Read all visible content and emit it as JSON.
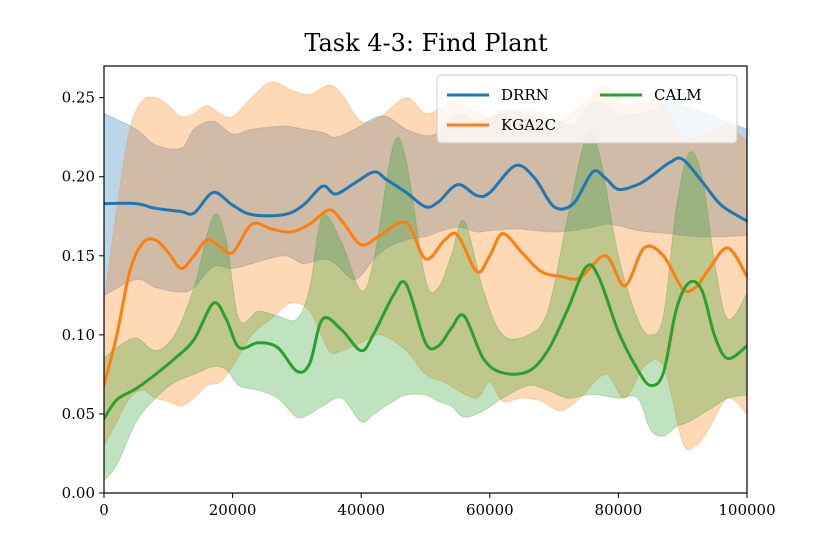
{
  "chart_data": {
    "type": "line",
    "title": "Task 4-3: Find Plant",
    "xlabel": "",
    "ylabel": "",
    "xlim": [
      0,
      100000
    ],
    "ylim": [
      0.0,
      0.27
    ],
    "x_ticks": [
      0,
      20000,
      40000,
      60000,
      80000,
      100000
    ],
    "x_tick_labels": [
      "0",
      "20000",
      "40000",
      "60000",
      "80000",
      "100000"
    ],
    "y_ticks": [
      0.0,
      0.05,
      0.1,
      0.15,
      0.2,
      0.25
    ],
    "y_tick_labels": [
      "0.00",
      "0.05",
      "0.10",
      "0.15",
      "0.20",
      "0.25"
    ],
    "grid": false,
    "legend_position": "top-right",
    "series": [
      {
        "name": "DRRN",
        "color": "#1f77b4",
        "x": [
          0,
          5000,
          8000,
          12000,
          14000,
          17000,
          20000,
          23000,
          28000,
          31000,
          34000,
          36000,
          39000,
          42000,
          44000,
          47000,
          50000,
          52000,
          55000,
          58000,
          60000,
          64000,
          67000,
          70000,
          73000,
          76000,
          78000,
          80000,
          83000,
          85000,
          88000,
          90000,
          93000,
          96000,
          100000
        ],
        "values": [
          0.183,
          0.183,
          0.18,
          0.178,
          0.177,
          0.19,
          0.182,
          0.176,
          0.176,
          0.182,
          0.194,
          0.189,
          0.196,
          0.203,
          0.198,
          0.19,
          0.181,
          0.184,
          0.195,
          0.188,
          0.19,
          0.207,
          0.199,
          0.181,
          0.183,
          0.203,
          0.199,
          0.192,
          0.195,
          0.2,
          0.209,
          0.211,
          0.197,
          0.182,
          0.172
        ],
        "band_low": [
          0.125,
          0.135,
          0.13,
          0.127,
          0.13,
          0.143,
          0.142,
          0.145,
          0.15,
          0.145,
          0.148,
          0.145,
          0.135,
          0.148,
          0.155,
          0.16,
          0.162,
          0.165,
          0.168,
          0.165,
          0.166,
          0.167,
          0.166,
          0.165,
          0.166,
          0.168,
          0.17,
          0.169,
          0.166,
          0.165,
          0.164,
          0.163,
          0.162,
          0.162,
          0.163
        ],
        "band_high": [
          0.24,
          0.23,
          0.22,
          0.218,
          0.23,
          0.235,
          0.227,
          0.23,
          0.232,
          0.23,
          0.228,
          0.225,
          0.23,
          0.237,
          0.238,
          0.23,
          0.226,
          0.228,
          0.24,
          0.235,
          0.238,
          0.241,
          0.235,
          0.236,
          0.233,
          0.247,
          0.245,
          0.24,
          0.24,
          0.242,
          0.247,
          0.245,
          0.241,
          0.236,
          0.23
        ]
      },
      {
        "name": "KGA2C",
        "color": "#ff7f0e",
        "x": [
          0,
          2000,
          4000,
          6000,
          8000,
          10000,
          12000,
          14000,
          16000,
          18000,
          20000,
          23000,
          26000,
          29000,
          32000,
          35000,
          37000,
          40000,
          43000,
          47000,
          50000,
          53000,
          55000,
          58000,
          60000,
          62000,
          65000,
          68000,
          71000,
          74000,
          78000,
          81000,
          84000,
          87000,
          90000,
          92000,
          94000,
          97000,
          100000
        ],
        "values": [
          0.068,
          0.1,
          0.14,
          0.158,
          0.16,
          0.152,
          0.142,
          0.15,
          0.16,
          0.156,
          0.152,
          0.17,
          0.167,
          0.165,
          0.17,
          0.179,
          0.172,
          0.157,
          0.163,
          0.171,
          0.148,
          0.16,
          0.163,
          0.14,
          0.15,
          0.164,
          0.152,
          0.14,
          0.137,
          0.136,
          0.15,
          0.131,
          0.155,
          0.15,
          0.129,
          0.13,
          0.141,
          0.155,
          0.137
        ],
        "band_low": [
          0.03,
          0.045,
          0.06,
          0.065,
          0.06,
          0.058,
          0.055,
          0.06,
          0.068,
          0.07,
          0.08,
          0.1,
          0.11,
          0.12,
          0.115,
          0.09,
          0.09,
          0.095,
          0.1,
          0.09,
          0.075,
          0.07,
          0.065,
          0.06,
          0.07,
          0.058,
          0.06,
          0.058,
          0.052,
          0.06,
          0.075,
          0.06,
          0.08,
          0.08,
          0.032,
          0.03,
          0.04,
          0.06,
          0.05
        ],
        "band_high": [
          0.12,
          0.18,
          0.23,
          0.248,
          0.25,
          0.245,
          0.238,
          0.24,
          0.245,
          0.24,
          0.238,
          0.25,
          0.26,
          0.255,
          0.252,
          0.258,
          0.252,
          0.235,
          0.238,
          0.25,
          0.24,
          0.245,
          0.25,
          0.24,
          0.238,
          0.242,
          0.242,
          0.24,
          0.235,
          0.245,
          0.258,
          0.245,
          0.248,
          0.245,
          0.225,
          0.225,
          0.228,
          0.232,
          0.222
        ]
      },
      {
        "name": "CALM",
        "color": "#2ca02c",
        "x": [
          0,
          2000,
          5000,
          8000,
          11000,
          14000,
          17000,
          19000,
          21000,
          24000,
          27000,
          30000,
          32000,
          34000,
          37000,
          40000,
          42000,
          45000,
          47000,
          50000,
          52000,
          54000,
          56000,
          59000,
          62000,
          66000,
          69000,
          72000,
          75000,
          77000,
          80000,
          83000,
          85000,
          87000,
          89000,
          91000,
          93000,
          95000,
          97000,
          100000
        ],
        "values": [
          0.047,
          0.059,
          0.066,
          0.075,
          0.085,
          0.097,
          0.12,
          0.11,
          0.092,
          0.095,
          0.092,
          0.077,
          0.082,
          0.11,
          0.103,
          0.09,
          0.101,
          0.125,
          0.132,
          0.095,
          0.093,
          0.104,
          0.112,
          0.085,
          0.076,
          0.077,
          0.09,
          0.115,
          0.143,
          0.136,
          0.102,
          0.078,
          0.068,
          0.076,
          0.116,
          0.133,
          0.128,
          0.099,
          0.085,
          0.093
        ],
        "band_low": [
          0.008,
          0.018,
          0.045,
          0.06,
          0.07,
          0.075,
          0.08,
          0.078,
          0.068,
          0.065,
          0.06,
          0.048,
          0.05,
          0.055,
          0.06,
          0.045,
          0.05,
          0.058,
          0.062,
          0.062,
          0.058,
          0.055,
          0.048,
          0.052,
          0.06,
          0.068,
          0.065,
          0.06,
          0.062,
          0.062,
          0.06,
          0.06,
          0.04,
          0.036,
          0.042,
          0.045,
          0.05,
          0.055,
          0.06,
          0.062
        ],
        "band_high": [
          0.085,
          0.092,
          0.098,
          0.09,
          0.1,
          0.13,
          0.175,
          0.16,
          0.11,
          0.115,
          0.112,
          0.11,
          0.13,
          0.175,
          0.158,
          0.128,
          0.148,
          0.22,
          0.21,
          0.135,
          0.13,
          0.15,
          0.172,
          0.128,
          0.1,
          0.1,
          0.115,
          0.172,
          0.225,
          0.215,
          0.15,
          0.11,
          0.1,
          0.112,
          0.18,
          0.215,
          0.2,
          0.145,
          0.11,
          0.126
        ]
      }
    ]
  }
}
